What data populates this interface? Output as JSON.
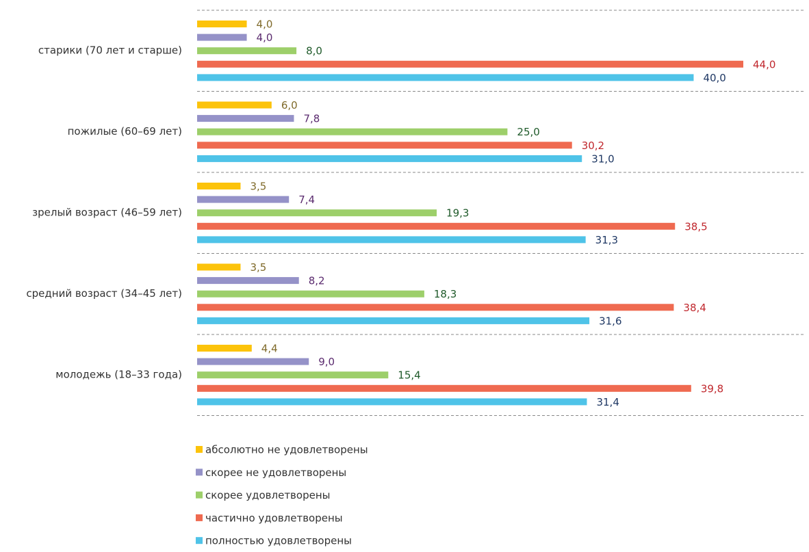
{
  "chart_data": {
    "type": "hbar",
    "categories": [
      "старики (70 лет и старше)",
      "пожилые (60–69 лет)",
      "зрелый возраст (46–59 лет)",
      "средний возраст (34–45 лет)",
      "молодежь (18–33 года)"
    ],
    "series": [
      {
        "name": "абсолютно не удовлетворены",
        "color": "#fcc30b",
        "label_color": "#7f6a2a",
        "values": [
          4.0,
          6.0,
          3.5,
          3.5,
          4.4
        ],
        "value_labels": [
          "4,0",
          "6,0",
          "3,5",
          "3,5",
          "4,4"
        ]
      },
      {
        "name": "скорее не удовлетворены",
        "color": "#9592c8",
        "label_color": "#5a2a6e",
        "values": [
          4.0,
          7.8,
          7.4,
          8.2,
          9.0
        ],
        "value_labels": [
          "4,0",
          "7,8",
          "7,4",
          "8,2",
          "9,0"
        ]
      },
      {
        "name": "скорее удовлетворены",
        "color": "#9dcf6a",
        "label_color": "#1f5a2a",
        "values": [
          8.0,
          25.0,
          19.3,
          18.3,
          15.4
        ],
        "value_labels": [
          "8,0",
          "25,0",
          "19,3",
          "18,3",
          "15,4"
        ]
      },
      {
        "name": "частично удовлетворены",
        "color": "#ef6a50",
        "label_color": "#c0272d",
        "values": [
          44.0,
          30.2,
          38.5,
          38.4,
          39.8
        ],
        "value_labels": [
          "44,0",
          "30,2",
          "38,5",
          "38,4",
          "39,8"
        ]
      },
      {
        "name": "полностью удовлетворены",
        "color": "#4fc3e8",
        "label_color": "#1f3864",
        "values": [
          40.0,
          31.0,
          31.3,
          31.6,
          31.4
        ],
        "value_labels": [
          "40,0",
          "31,0",
          "31,3",
          "31,6",
          "31,4"
        ]
      }
    ],
    "legend": "bottom"
  }
}
